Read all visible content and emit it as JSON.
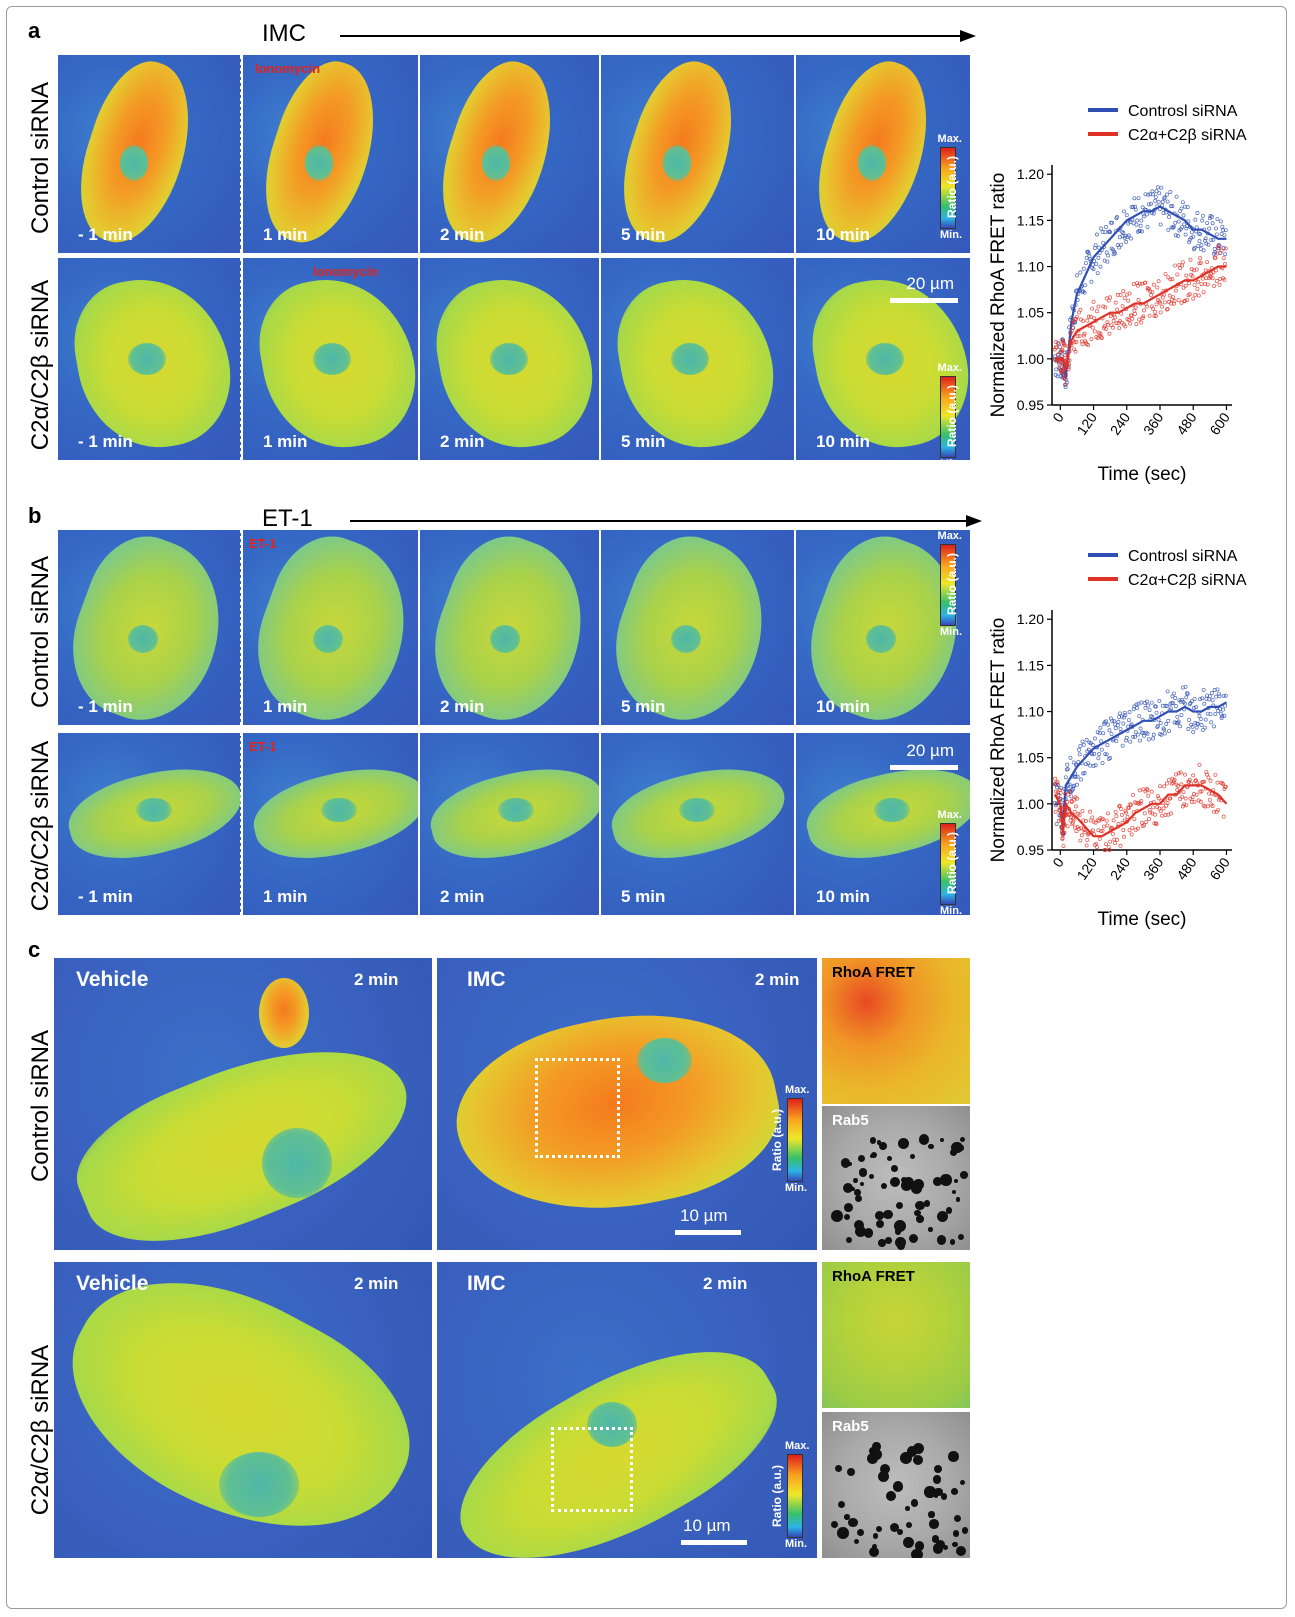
{
  "figure": {
    "panel_a": {
      "letter": "a",
      "treatment": "IMC",
      "row_labels": [
        "Control siRNA",
        "C2α/C2β siRNA"
      ],
      "time_labels": [
        "- 1 min",
        "1 min",
        "2 min",
        "5 min",
        "10 min"
      ],
      "stimulus_label": "Ionomycin",
      "scale_bar": "20 µm",
      "colorbar": {
        "max": "Max.",
        "min": "Min.",
        "title": "Ratio (a.u.)"
      }
    },
    "panel_b": {
      "letter": "b",
      "treatment": "ET-1",
      "row_labels": [
        "Control siRNA",
        "C2α/C2β siRNA"
      ],
      "time_labels": [
        "- 1 min",
        "1 min",
        "2 min",
        "5 min",
        "10 min"
      ],
      "stimulus_label": "ET-1",
      "scale_bar": "20 µm",
      "colorbar": {
        "max": "Max.",
        "min": "Min.",
        "title": "Ratio (a.u.)"
      }
    },
    "panel_c": {
      "letter": "c",
      "row_labels": [
        "Control siRNA",
        "C2α/C2β siRNA"
      ],
      "vehicle_label": "Vehicle",
      "imc_label": "IMC",
      "time": "2 min",
      "scale_bar": "10 µm",
      "inset_fret": "RhoA FRET",
      "inset_rab5": "Rab5",
      "colorbar": {
        "max": "Max.",
        "min": "Min.",
        "title": "Ratio (a.u.)"
      }
    }
  },
  "chart_data": [
    {
      "type": "scatter",
      "panel": "a",
      "xlabel": "Time (sec)",
      "ylabel": "Normalized RhoA FRET ratio",
      "xlim": [
        -30,
        620
      ],
      "ylim": [
        0.95,
        1.21
      ],
      "xticks": [
        "0",
        "120",
        "240",
        "360",
        "480",
        "600"
      ],
      "yticks": [
        "0.95",
        "1.00",
        "1.05",
        "1.10",
        "1.15",
        "1.20"
      ],
      "legend_position": "top",
      "series": [
        {
          "name": "Controsl siRNA",
          "color": "#2f4fb3",
          "x": [
            -20,
            0,
            10,
            20,
            40,
            60,
            90,
            120,
            150,
            180,
            210,
            240,
            270,
            300,
            330,
            360,
            390,
            420,
            450,
            480,
            510,
            540,
            570,
            600
          ],
          "y": [
            1.0,
            1.0,
            1.0,
            0.98,
            1.04,
            1.07,
            1.09,
            1.11,
            1.12,
            1.13,
            1.14,
            1.15,
            1.155,
            1.16,
            1.16,
            1.165,
            1.16,
            1.155,
            1.15,
            1.14,
            1.14,
            1.135,
            1.13,
            1.13
          ]
        },
        {
          "name": "C2α+C2β siRNA",
          "color": "#e03127",
          "x": [
            -20,
            0,
            10,
            20,
            40,
            60,
            90,
            120,
            150,
            180,
            210,
            240,
            270,
            300,
            330,
            360,
            390,
            420,
            450,
            480,
            510,
            540,
            570,
            600
          ],
          "y": [
            1.0,
            1.0,
            1.0,
            0.99,
            1.02,
            1.03,
            1.035,
            1.04,
            1.045,
            1.05,
            1.05,
            1.055,
            1.06,
            1.06,
            1.065,
            1.07,
            1.075,
            1.08,
            1.085,
            1.085,
            1.09,
            1.095,
            1.1,
            1.1
          ]
        }
      ]
    },
    {
      "type": "scatter",
      "panel": "b",
      "xlabel": "Time (sec)",
      "ylabel": "Normalized RhoA FRET ratio",
      "xlim": [
        -30,
        620
      ],
      "ylim": [
        0.95,
        1.21
      ],
      "xticks": [
        "0",
        "120",
        "240",
        "360",
        "480",
        "600"
      ],
      "yticks": [
        "0.95",
        "1.00",
        "1.05",
        "1.10",
        "1.15",
        "1.20"
      ],
      "legend_position": "top",
      "series": [
        {
          "name": "Controsl siRNA",
          "color": "#2f4fb3",
          "x": [
            -20,
            0,
            10,
            20,
            40,
            60,
            90,
            120,
            150,
            180,
            210,
            240,
            270,
            300,
            330,
            360,
            390,
            420,
            450,
            480,
            510,
            540,
            570,
            600
          ],
          "y": [
            1.0,
            1.0,
            0.98,
            1.02,
            1.03,
            1.04,
            1.05,
            1.06,
            1.065,
            1.07,
            1.075,
            1.08,
            1.085,
            1.09,
            1.09,
            1.095,
            1.1,
            1.1,
            1.105,
            1.1,
            1.1,
            1.105,
            1.105,
            1.11
          ]
        },
        {
          "name": "C2α+C2β siRNA",
          "color": "#e03127",
          "x": [
            -20,
            0,
            10,
            20,
            40,
            60,
            90,
            120,
            150,
            180,
            210,
            240,
            270,
            300,
            330,
            360,
            390,
            420,
            450,
            480,
            510,
            540,
            570,
            600
          ],
          "y": [
            1.01,
            1.0,
            0.97,
            1.0,
            0.99,
            0.985,
            0.975,
            0.965,
            0.965,
            0.97,
            0.975,
            0.98,
            0.99,
            0.995,
            1.0,
            1.0,
            1.01,
            1.01,
            1.02,
            1.02,
            1.02,
            1.015,
            1.01,
            1.0
          ]
        }
      ]
    }
  ]
}
